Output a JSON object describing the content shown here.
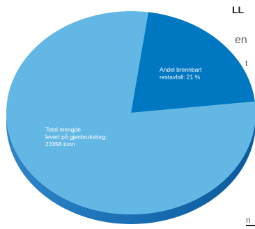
{
  "edge_text": {
    "line1": "LL",
    "line2": "en",
    "line3": "t",
    "line4": "n"
  },
  "chart_data": {
    "type": "pie",
    "title": "",
    "slices": [
      {
        "label_lines": [
          "Total mengde",
          "levert på gjenbrukstorg:",
          "23358 tonn"
        ],
        "value": 79,
        "color": "#63b7e4"
      },
      {
        "label_lines": [
          "Andel brennbart",
          "restavfall: 21 %"
        ],
        "value": 21,
        "color": "#0077c1"
      }
    ],
    "shadow_colors": [
      "#1b71b8",
      "#0a5a9e"
    ]
  }
}
